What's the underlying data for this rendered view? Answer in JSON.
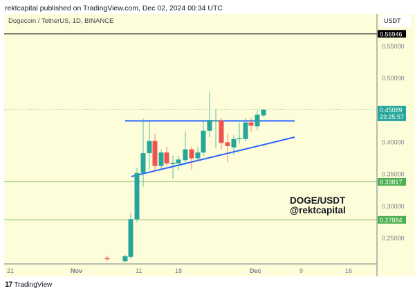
{
  "header": {
    "published": "rektcapital published on TradingView.com, Dec 02, 2024 00:34 UTC"
  },
  "legend": {
    "symbol": "Dogecoin / TetherUS, 1D, BINANCE"
  },
  "price_axis": {
    "currency": "USDT",
    "ticks": [
      "0.55000",
      "0.50000",
      "0.40000",
      "0.35000",
      "0.30000",
      "0.25000"
    ],
    "labels": {
      "high_line": "0.56946",
      "last_price": "0.45089",
      "countdown": "23:25:57",
      "support_1": "0.33817",
      "support_2": "0.27884"
    }
  },
  "time_axis": {
    "ticks": [
      "21",
      "Nov",
      "11",
      "18",
      "Dec",
      "9",
      "16"
    ]
  },
  "annotation": {
    "line1": "DOGE/USDT",
    "line2": "@rektcapital"
  },
  "footer": {
    "brand": "TradingView",
    "logo": "17"
  },
  "colors": {
    "up": "#26a69a",
    "down": "#ef5350",
    "trendline": "#2962ff",
    "support": "#7cb66e",
    "background": "#fdfdd9",
    "last_price_bg": "#26a69a",
    "high_line_bg": "#000000"
  },
  "chart_data": {
    "type": "candlestick",
    "title": "Dogecoin / TetherUS, 1D, BINANCE",
    "xlabel": "",
    "ylabel": "USDT",
    "ylim": [
      0.215,
      0.58
    ],
    "grid": false,
    "horizontal_lines": [
      {
        "price": 0.56946,
        "color": "#131722",
        "label": "0.56946"
      },
      {
        "price": 0.33817,
        "color": "#7cb66e",
        "label": "0.33817"
      },
      {
        "price": 0.27884,
        "color": "#7cb66e",
        "label": "0.27884"
      }
    ],
    "trendlines": [
      {
        "name": "resistance",
        "from": {
          "x": 181,
          "price": 0.4335
        },
        "to": {
          "x": 426,
          "price": 0.4335
        }
      },
      {
        "name": "ascending support",
        "from": {
          "x": 190,
          "price": 0.3465
        },
        "to": {
          "x": 426,
          "price": 0.408
        }
      }
    ],
    "candles": [
      {
        "x": 155,
        "o": 0.219,
        "h": 0.223,
        "l": 0.214,
        "c": 0.218
      },
      {
        "x": 181,
        "o": 0.214,
        "h": 0.224,
        "l": 0.213,
        "c": 0.222
      },
      {
        "x": 189,
        "o": 0.221,
        "h": 0.29,
        "l": 0.218,
        "c": 0.28
      },
      {
        "x": 198,
        "o": 0.28,
        "h": 0.36,
        "l": 0.275,
        "c": 0.352
      },
      {
        "x": 207,
        "o": 0.352,
        "h": 0.437,
        "l": 0.33,
        "c": 0.383
      },
      {
        "x": 216,
        "o": 0.383,
        "h": 0.435,
        "l": 0.357,
        "c": 0.402
      },
      {
        "x": 224,
        "o": 0.402,
        "h": 0.413,
        "l": 0.355,
        "c": 0.363
      },
      {
        "x": 233,
        "o": 0.363,
        "h": 0.389,
        "l": 0.358,
        "c": 0.384
      },
      {
        "x": 241,
        "o": 0.384,
        "h": 0.393,
        "l": 0.363,
        "c": 0.367
      },
      {
        "x": 250,
        "o": 0.366,
        "h": 0.379,
        "l": 0.343,
        "c": 0.368
      },
      {
        "x": 258,
        "o": 0.367,
        "h": 0.379,
        "l": 0.356,
        "c": 0.373
      },
      {
        "x": 268,
        "o": 0.372,
        "h": 0.417,
        "l": 0.364,
        "c": 0.389
      },
      {
        "x": 277,
        "o": 0.389,
        "h": 0.393,
        "l": 0.357,
        "c": 0.375
      },
      {
        "x": 286,
        "o": 0.375,
        "h": 0.392,
        "l": 0.371,
        "c": 0.384
      },
      {
        "x": 294,
        "o": 0.384,
        "h": 0.434,
        "l": 0.379,
        "c": 0.418
      },
      {
        "x": 303,
        "o": 0.418,
        "h": 0.479,
        "l": 0.408,
        "c": 0.435
      },
      {
        "x": 312,
        "o": 0.433,
        "h": 0.452,
        "l": 0.391,
        "c": 0.434
      },
      {
        "x": 320,
        "o": 0.434,
        "h": 0.438,
        "l": 0.389,
        "c": 0.399
      },
      {
        "x": 329,
        "o": 0.4,
        "h": 0.413,
        "l": 0.369,
        "c": 0.394
      },
      {
        "x": 338,
        "o": 0.392,
        "h": 0.411,
        "l": 0.38,
        "c": 0.405
      },
      {
        "x": 346,
        "o": 0.406,
        "h": 0.431,
        "l": 0.398,
        "c": 0.407
      },
      {
        "x": 355,
        "o": 0.405,
        "h": 0.438,
        "l": 0.401,
        "c": 0.431
      },
      {
        "x": 363,
        "o": 0.431,
        "h": 0.438,
        "l": 0.417,
        "c": 0.426
      },
      {
        "x": 372,
        "o": 0.425,
        "h": 0.451,
        "l": 0.419,
        "c": 0.443
      },
      {
        "x": 381,
        "o": 0.442,
        "h": 0.452,
        "l": 0.439,
        "c": 0.451
      }
    ]
  }
}
